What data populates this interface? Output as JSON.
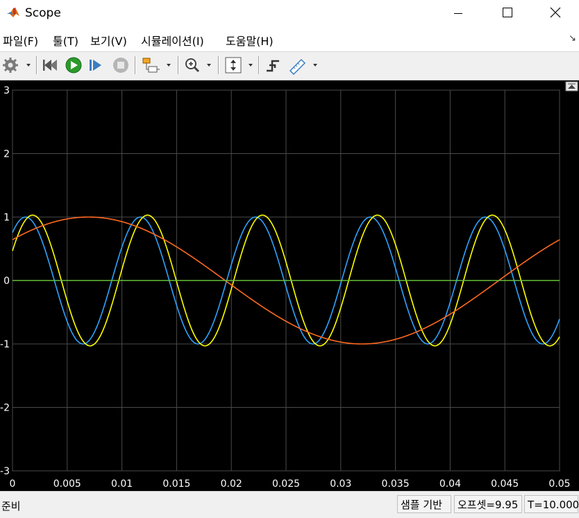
{
  "window": {
    "title": "Scope"
  },
  "menu": {
    "file": "파일(F)",
    "tools": "툴(T)",
    "view": "보기(V)",
    "simulation": "시뮬레이션(I)",
    "help": "도움말(H)"
  },
  "toolbar": {
    "icons": [
      "settings-icon",
      "step-back-icon",
      "run-icon",
      "step-forward-icon",
      "stop-icon",
      "highlight-block-icon",
      "zoom-in-icon",
      "scale-axes-icon",
      "triggers-icon",
      "cursor-measurements-icon"
    ]
  },
  "status": {
    "ready": "준비",
    "sample_based": "샘플 기반",
    "offset": "오프셋=9.95",
    "time": "T=10.000"
  },
  "colors": {
    "background": "#000000",
    "grid": "#4a4a4a",
    "axis_text": "#ffffff"
  },
  "chart_data": {
    "type": "line",
    "xlim": [
      0,
      0.05
    ],
    "ylim": [
      -3,
      3
    ],
    "x_ticks": [
      "0",
      "0.005",
      "0.01",
      "0.015",
      "0.02",
      "0.025",
      "0.03",
      "0.035",
      "0.04",
      "0.045",
      "0.05"
    ],
    "y_ticks": [
      "3",
      "2",
      "1",
      "0",
      "-1",
      "-2",
      "-3"
    ],
    "grid": true,
    "series": [
      {
        "color": "#2ea3ff",
        "freq_hz": 95.2,
        "amplitude": 1.0,
        "phase_deg": 49.0
      },
      {
        "color": "#ffff00",
        "freq_hz": 95.2,
        "amplitude": 1.03,
        "phase_deg": 27.0
      },
      {
        "color": "#ff6a20",
        "freq_hz": 20.0,
        "amplitude": 1.0,
        "phase_deg": 40.0
      },
      {
        "color": "#6ac43b",
        "constant": 0
      }
    ]
  }
}
